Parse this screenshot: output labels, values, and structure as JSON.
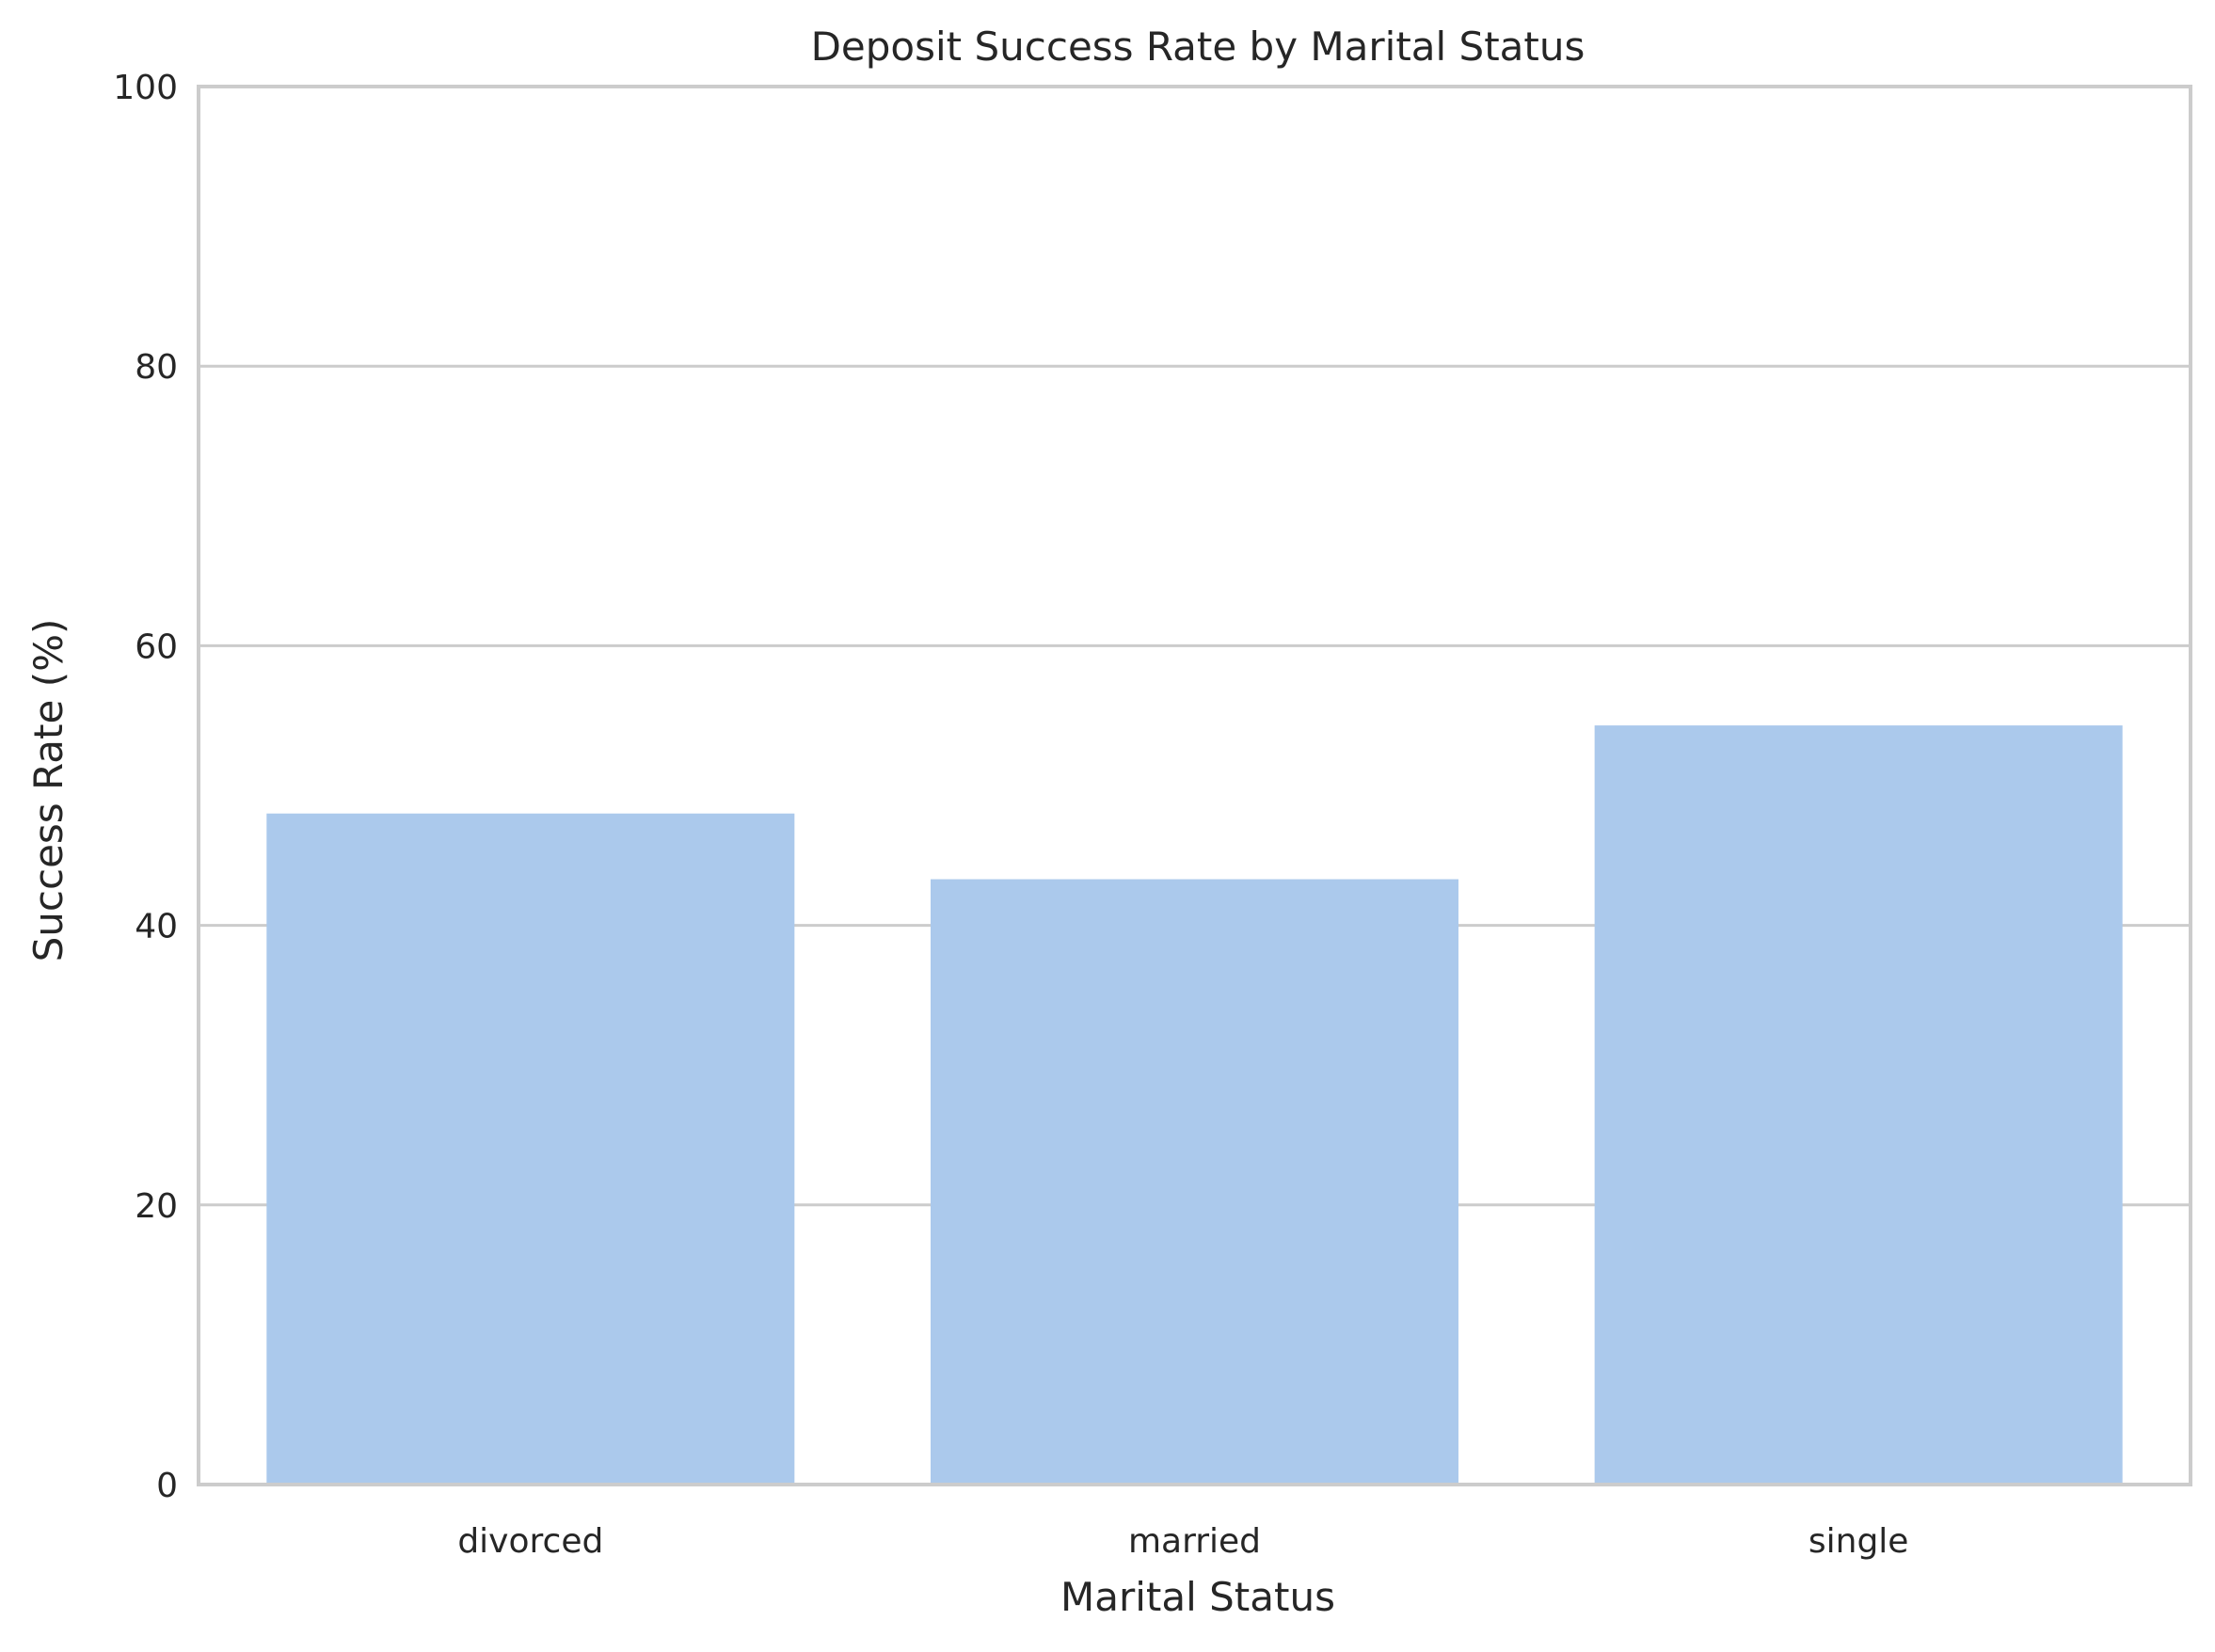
{
  "chart_data": {
    "type": "bar",
    "title": "Deposit Success Rate by Marital Status",
    "xlabel": "Marital Status",
    "ylabel": "Success Rate (%)",
    "categories": [
      "divorced",
      "married",
      "single"
    ],
    "values": [
      48.0,
      43.3,
      54.3
    ],
    "ylim": [
      0,
      100
    ],
    "yticks": [
      0,
      20,
      40,
      60,
      80,
      100
    ],
    "grid": "horizontal",
    "legend": "none",
    "colors": {
      "bar": "#abc9ec",
      "grid": "#cccccc",
      "spine": "#cccccc",
      "text": "#262626",
      "background": "#ffffff"
    }
  }
}
